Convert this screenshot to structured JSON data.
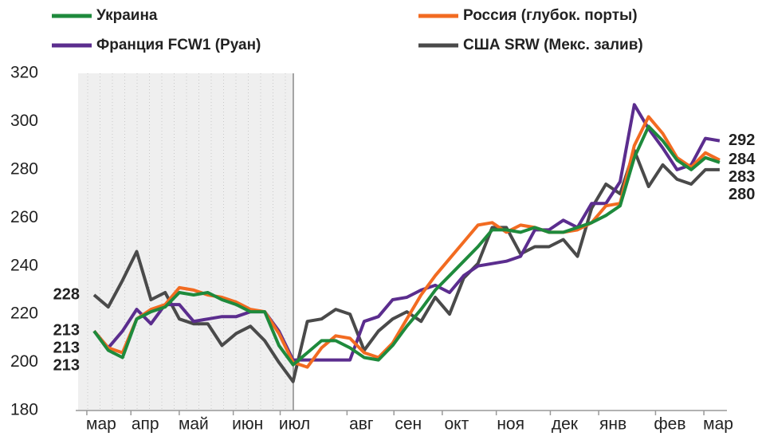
{
  "chart_data": {
    "type": "line",
    "x": [
      0,
      1,
      2,
      3,
      4,
      5,
      6,
      7,
      8,
      9,
      10,
      11,
      12,
      13,
      14,
      15,
      16,
      17,
      18,
      19,
      20,
      21,
      22,
      23,
      24,
      25,
      26,
      27,
      28,
      29,
      30,
      31,
      32,
      33,
      34,
      35,
      36,
      37,
      38,
      39,
      40,
      41,
      42,
      43,
      44
    ],
    "xlim": [
      -1.29,
      44.4
    ],
    "xticks": [
      {
        "value": 0.5,
        "label": "мар"
      },
      {
        "value": 3.6,
        "label": "апр"
      },
      {
        "value": 7.0,
        "label": "май"
      },
      {
        "value": 10.8,
        "label": "июн"
      },
      {
        "value": 14.1,
        "label": "июл"
      },
      {
        "value": 18.8,
        "label": "авг"
      },
      {
        "value": 22.1,
        "label": "сен"
      },
      {
        "value": 25.5,
        "label": "окт"
      },
      {
        "value": 29.3,
        "label": "ноя"
      },
      {
        "value": 33.1,
        "label": "дек"
      },
      {
        "value": 36.5,
        "label": "янв"
      },
      {
        "value": 40.5,
        "label": "фев"
      },
      {
        "value": 43.9,
        "label": "мар"
      }
    ],
    "ylim": [
      180,
      320
    ],
    "yticks": [
      180,
      200,
      220,
      240,
      260,
      280,
      300,
      320
    ],
    "series": [
      {
        "name": "Украина",
        "color": "#1e8a3c",
        "values": [
          213,
          205,
          202,
          218,
          221,
          223,
          229,
          228,
          229,
          226,
          224,
          221,
          221,
          207,
          199,
          204,
          209,
          209,
          206,
          202,
          201,
          207,
          215,
          222,
          230,
          236,
          242,
          248,
          255,
          255,
          254,
          256,
          254,
          254,
          256,
          258,
          261,
          265,
          285,
          298,
          292,
          284,
          280,
          285,
          283
        ]
      },
      {
        "name": "Россия (глубок. порты)",
        "color": "#f26b21",
        "values": [
          213,
          206,
          204,
          218,
          222,
          224,
          231,
          230,
          228,
          227,
          225,
          222,
          221,
          212,
          200,
          198,
          206,
          211,
          210,
          204,
          202,
          208,
          218,
          228,
          236,
          243,
          250,
          257,
          258,
          254,
          257,
          256,
          254,
          254,
          255,
          258,
          265,
          266,
          290,
          302,
          295,
          285,
          281,
          287,
          284
        ]
      },
      {
        "name": "Франция FCW1 (Руан)",
        "color": "#5b2d8e",
        "values": [
          213,
          206,
          213,
          222,
          216,
          224,
          224,
          217,
          218,
          219,
          219,
          221,
          221,
          213,
          201,
          201,
          201,
          201,
          201,
          217,
          219,
          226,
          227,
          230,
          232,
          229,
          236,
          240,
          241,
          242,
          244,
          255,
          255,
          259,
          256,
          266,
          266,
          275,
          307,
          297,
          289,
          280,
          282,
          293,
          292
        ]
      },
      {
        "name": "США SRW (Мекс. залив)",
        "color": "#4a4a4a",
        "values": [
          228,
          223,
          234,
          246,
          226,
          229,
          218,
          216,
          216,
          207,
          212,
          215,
          209,
          200,
          192,
          217,
          218,
          222,
          220,
          205,
          213,
          218,
          221,
          217,
          227,
          220,
          235,
          241,
          256,
          256,
          245,
          248,
          248,
          251,
          244,
          264,
          274,
          270,
          288,
          273,
          282,
          276,
          274,
          280,
          280
        ]
      }
    ]
  }
}
